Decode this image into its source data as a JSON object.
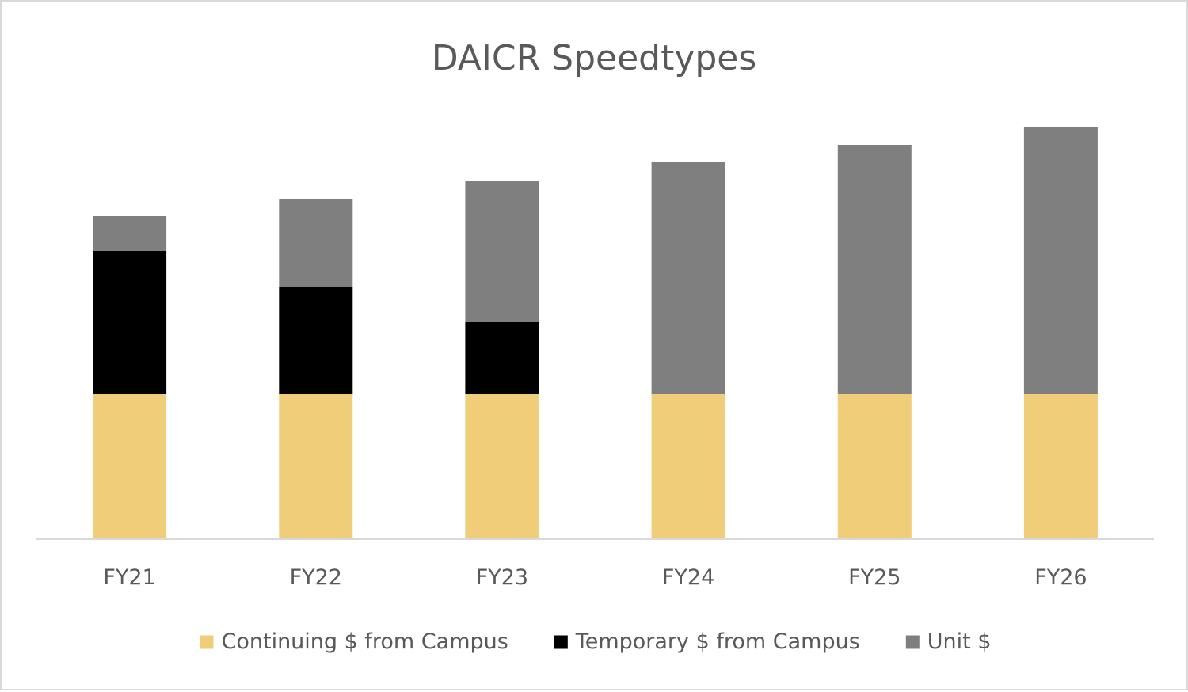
{
  "chart_data": {
    "type": "bar",
    "stacked": true,
    "title": "DAICR Speedtypes",
    "xlabel": "",
    "ylabel": "",
    "categories": [
      "FY21",
      "FY22",
      "FY23",
      "FY24",
      "FY25",
      "FY26"
    ],
    "series": [
      {
        "name": "Continuing $ from Campus",
        "color": "#f0cd78",
        "values": [
          183,
          183,
          183,
          183,
          183,
          183
        ]
      },
      {
        "name": "Temporary $ from Campus",
        "color": "#000000",
        "values": [
          181,
          135,
          91,
          0,
          0,
          0
        ]
      },
      {
        "name": "Unit $",
        "color": "#7f7f7f",
        "values": [
          44,
          112,
          178,
          293,
          315,
          337
        ]
      }
    ],
    "ylim": [
      0,
      520
    ],
    "grid": false,
    "legend_position": "bottom"
  }
}
